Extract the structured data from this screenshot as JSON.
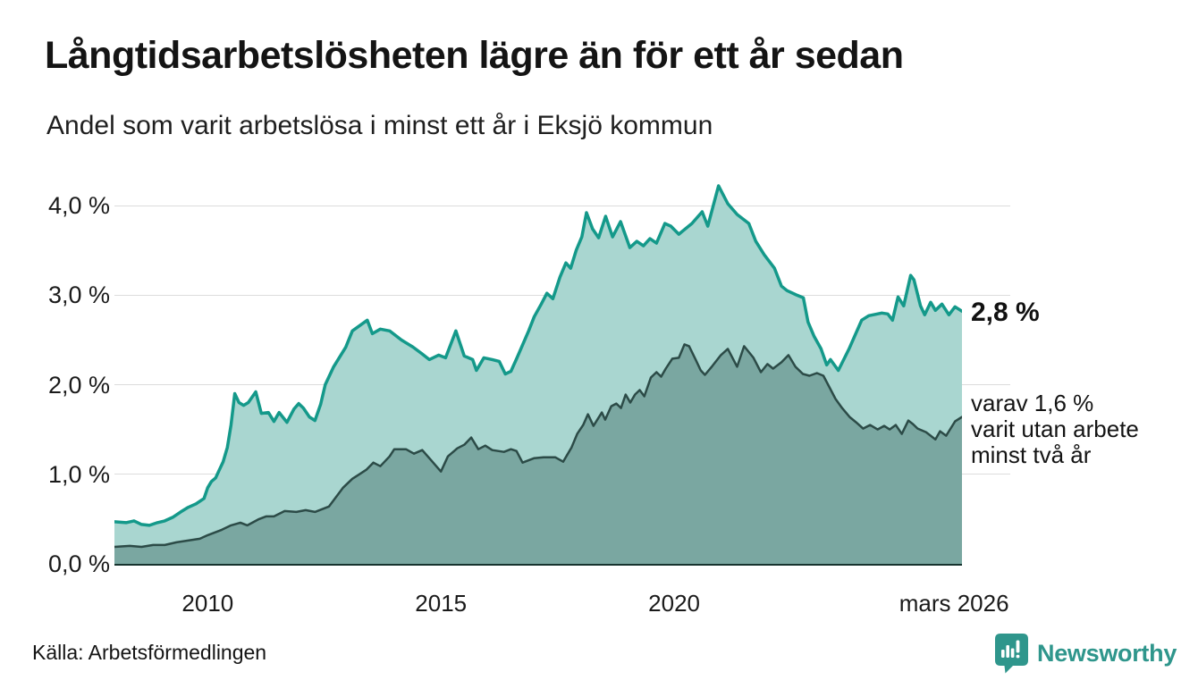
{
  "header": {
    "title": "Långtidsarbetslösheten lägre än för ett år sedan",
    "subtitle": "Andel som varit arbetslösa i minst ett år i Eksjö kommun"
  },
  "annotations": {
    "latest_total": "2,8 %",
    "secondary": [
      "varav 1,6 %",
      "varit utan arbete",
      "minst två år"
    ]
  },
  "footer": {
    "source": "Källa: Arbetsförmedlingen",
    "brand": "Newsworthy"
  },
  "colors": {
    "series1_line": "#14998a",
    "series1_fill": "#a9d6d0",
    "series2_line": "#2c4b47",
    "series2_fill": "#7aa7a1",
    "grid": "#dcdcdc",
    "axis": "#16332e",
    "brand_teal": "#2f968c",
    "text": "#141414"
  },
  "chart_data": {
    "type": "area",
    "title": "Långtidsarbetslösheten lägre än för ett år sedan",
    "subtitle": "Andel som varit arbetslösa i minst ett år i Eksjö kommun",
    "source": "Källa: Arbetsförmedlingen",
    "x_range": [
      2008.0,
      2026.17
    ],
    "ylim": [
      0,
      4.3
    ],
    "grid": true,
    "legend": "none (direct labels at right edge)",
    "yticks": [
      {
        "v": 0,
        "label": "0,0 %"
      },
      {
        "v": 1,
        "label": "1,0 %"
      },
      {
        "v": 2,
        "label": "2,0 %"
      },
      {
        "v": 3,
        "label": "3,0 %"
      },
      {
        "v": 4,
        "label": "4,0 %"
      }
    ],
    "xticks": [
      {
        "v": 2010,
        "label": "2010"
      },
      {
        "v": 2015,
        "label": "2015"
      },
      {
        "v": 2020,
        "label": "2020"
      },
      {
        "v": 2026.0,
        "label": "mars 2026"
      }
    ],
    "series": [
      {
        "name": "Andel arbetslösa minst ett år",
        "end_label": "2,8 %",
        "line_color": "#14998a",
        "fill_color": "#a9d6d0",
        "line_width": 3.5,
        "points": [
          [
            2008.0,
            0.47
          ],
          [
            2008.25,
            0.46
          ],
          [
            2008.42,
            0.48
          ],
          [
            2008.58,
            0.44
          ],
          [
            2008.75,
            0.43
          ],
          [
            2008.92,
            0.46
          ],
          [
            2009.08,
            0.48
          ],
          [
            2009.25,
            0.52
          ],
          [
            2009.42,
            0.58
          ],
          [
            2009.58,
            0.63
          ],
          [
            2009.75,
            0.67
          ],
          [
            2009.92,
            0.73
          ],
          [
            2010.0,
            0.85
          ],
          [
            2010.08,
            0.92
          ],
          [
            2010.17,
            0.96
          ],
          [
            2010.25,
            1.05
          ],
          [
            2010.33,
            1.14
          ],
          [
            2010.42,
            1.3
          ],
          [
            2010.5,
            1.55
          ],
          [
            2010.58,
            1.9
          ],
          [
            2010.67,
            1.8
          ],
          [
            2010.77,
            1.77
          ],
          [
            2010.87,
            1.8
          ],
          [
            2011.03,
            1.92
          ],
          [
            2011.15,
            1.68
          ],
          [
            2011.3,
            1.69
          ],
          [
            2011.42,
            1.59
          ],
          [
            2011.53,
            1.69
          ],
          [
            2011.7,
            1.58
          ],
          [
            2011.85,
            1.73
          ],
          [
            2011.95,
            1.79
          ],
          [
            2012.05,
            1.74
          ],
          [
            2012.18,
            1.64
          ],
          [
            2012.3,
            1.6
          ],
          [
            2012.42,
            1.78
          ],
          [
            2012.52,
            2.0
          ],
          [
            2012.7,
            2.2
          ],
          [
            2012.96,
            2.42
          ],
          [
            2013.1,
            2.6
          ],
          [
            2013.42,
            2.72
          ],
          [
            2013.53,
            2.57
          ],
          [
            2013.7,
            2.62
          ],
          [
            2013.9,
            2.6
          ],
          [
            2014.15,
            2.5
          ],
          [
            2014.4,
            2.42
          ],
          [
            2014.58,
            2.35
          ],
          [
            2014.75,
            2.28
          ],
          [
            2014.95,
            2.33
          ],
          [
            2015.1,
            2.3
          ],
          [
            2015.32,
            2.6
          ],
          [
            2015.5,
            2.32
          ],
          [
            2015.68,
            2.28
          ],
          [
            2015.76,
            2.16
          ],
          [
            2015.92,
            2.3
          ],
          [
            2016.1,
            2.28
          ],
          [
            2016.25,
            2.26
          ],
          [
            2016.38,
            2.12
          ],
          [
            2016.5,
            2.15
          ],
          [
            2016.63,
            2.3
          ],
          [
            2016.88,
            2.6
          ],
          [
            2017.0,
            2.76
          ],
          [
            2017.15,
            2.9
          ],
          [
            2017.27,
            3.02
          ],
          [
            2017.4,
            2.96
          ],
          [
            2017.55,
            3.2
          ],
          [
            2017.68,
            3.36
          ],
          [
            2017.78,
            3.3
          ],
          [
            2017.9,
            3.5
          ],
          [
            2018.02,
            3.65
          ],
          [
            2018.12,
            3.92
          ],
          [
            2018.25,
            3.74
          ],
          [
            2018.38,
            3.64
          ],
          [
            2018.53,
            3.88
          ],
          [
            2018.68,
            3.65
          ],
          [
            2018.85,
            3.82
          ],
          [
            2019.05,
            3.53
          ],
          [
            2019.2,
            3.6
          ],
          [
            2019.34,
            3.55
          ],
          [
            2019.48,
            3.63
          ],
          [
            2019.62,
            3.58
          ],
          [
            2019.8,
            3.8
          ],
          [
            2019.93,
            3.77
          ],
          [
            2020.1,
            3.68
          ],
          [
            2020.38,
            3.8
          ],
          [
            2020.6,
            3.93
          ],
          [
            2020.72,
            3.77
          ],
          [
            2020.95,
            4.22
          ],
          [
            2021.15,
            4.02
          ],
          [
            2021.35,
            3.9
          ],
          [
            2021.6,
            3.8
          ],
          [
            2021.75,
            3.6
          ],
          [
            2021.93,
            3.45
          ],
          [
            2022.15,
            3.3
          ],
          [
            2022.3,
            3.1
          ],
          [
            2022.42,
            3.05
          ],
          [
            2022.63,
            3.0
          ],
          [
            2022.77,
            2.97
          ],
          [
            2022.87,
            2.7
          ],
          [
            2023.0,
            2.54
          ],
          [
            2023.15,
            2.4
          ],
          [
            2023.27,
            2.22
          ],
          [
            2023.35,
            2.28
          ],
          [
            2023.52,
            2.16
          ],
          [
            2023.75,
            2.4
          ],
          [
            2024.02,
            2.72
          ],
          [
            2024.17,
            2.77
          ],
          [
            2024.45,
            2.8
          ],
          [
            2024.58,
            2.79
          ],
          [
            2024.68,
            2.72
          ],
          [
            2024.8,
            2.98
          ],
          [
            2024.92,
            2.88
          ],
          [
            2025.07,
            3.22
          ],
          [
            2025.14,
            3.17
          ],
          [
            2025.28,
            2.88
          ],
          [
            2025.37,
            2.78
          ],
          [
            2025.5,
            2.92
          ],
          [
            2025.6,
            2.83
          ],
          [
            2025.74,
            2.9
          ],
          [
            2025.89,
            2.78
          ],
          [
            2026.02,
            2.87
          ],
          [
            2026.17,
            2.82
          ]
        ]
      },
      {
        "name": "varav utan arbete minst två år",
        "end_label": "1,6 %",
        "line_color": "#2c4b47",
        "fill_color": "#7aa7a1",
        "line_width": 2.5,
        "points": [
          [
            2008.0,
            0.19
          ],
          [
            2008.33,
            0.2
          ],
          [
            2008.58,
            0.19
          ],
          [
            2008.83,
            0.21
          ],
          [
            2009.08,
            0.21
          ],
          [
            2009.33,
            0.24
          ],
          [
            2009.58,
            0.26
          ],
          [
            2009.83,
            0.28
          ],
          [
            2010.0,
            0.32
          ],
          [
            2010.3,
            0.38
          ],
          [
            2010.5,
            0.43
          ],
          [
            2010.7,
            0.46
          ],
          [
            2010.85,
            0.43
          ],
          [
            2011.1,
            0.5
          ],
          [
            2011.25,
            0.53
          ],
          [
            2011.42,
            0.53
          ],
          [
            2011.65,
            0.59
          ],
          [
            2011.9,
            0.58
          ],
          [
            2012.1,
            0.6
          ],
          [
            2012.3,
            0.58
          ],
          [
            2012.6,
            0.64
          ],
          [
            2012.9,
            0.85
          ],
          [
            2013.1,
            0.95
          ],
          [
            2013.25,
            1.0
          ],
          [
            2013.4,
            1.05
          ],
          [
            2013.55,
            1.13
          ],
          [
            2013.7,
            1.09
          ],
          [
            2013.9,
            1.2
          ],
          [
            2014.0,
            1.28
          ],
          [
            2014.25,
            1.28
          ],
          [
            2014.42,
            1.23
          ],
          [
            2014.6,
            1.27
          ],
          [
            2014.8,
            1.15
          ],
          [
            2015.0,
            1.03
          ],
          [
            2015.15,
            1.2
          ],
          [
            2015.35,
            1.29
          ],
          [
            2015.5,
            1.33
          ],
          [
            2015.65,
            1.41
          ],
          [
            2015.8,
            1.28
          ],
          [
            2015.95,
            1.32
          ],
          [
            2016.1,
            1.27
          ],
          [
            2016.35,
            1.25
          ],
          [
            2016.5,
            1.28
          ],
          [
            2016.62,
            1.26
          ],
          [
            2016.75,
            1.13
          ],
          [
            2017.0,
            1.18
          ],
          [
            2017.2,
            1.19
          ],
          [
            2017.45,
            1.19
          ],
          [
            2017.62,
            1.14
          ],
          [
            2017.8,
            1.3
          ],
          [
            2017.92,
            1.45
          ],
          [
            2018.05,
            1.55
          ],
          [
            2018.15,
            1.67
          ],
          [
            2018.27,
            1.54
          ],
          [
            2018.45,
            1.69
          ],
          [
            2018.52,
            1.61
          ],
          [
            2018.65,
            1.76
          ],
          [
            2018.76,
            1.79
          ],
          [
            2018.86,
            1.74
          ],
          [
            2018.96,
            1.89
          ],
          [
            2019.06,
            1.8
          ],
          [
            2019.16,
            1.89
          ],
          [
            2019.26,
            1.94
          ],
          [
            2019.36,
            1.87
          ],
          [
            2019.5,
            2.08
          ],
          [
            2019.62,
            2.14
          ],
          [
            2019.72,
            2.09
          ],
          [
            2019.82,
            2.18
          ],
          [
            2019.96,
            2.29
          ],
          [
            2020.1,
            2.3
          ],
          [
            2020.22,
            2.45
          ],
          [
            2020.32,
            2.43
          ],
          [
            2020.46,
            2.28
          ],
          [
            2020.57,
            2.16
          ],
          [
            2020.66,
            2.11
          ],
          [
            2020.82,
            2.21
          ],
          [
            2021.0,
            2.33
          ],
          [
            2021.15,
            2.4
          ],
          [
            2021.35,
            2.2
          ],
          [
            2021.5,
            2.43
          ],
          [
            2021.7,
            2.3
          ],
          [
            2021.86,
            2.14
          ],
          [
            2022.0,
            2.23
          ],
          [
            2022.12,
            2.18
          ],
          [
            2022.3,
            2.25
          ],
          [
            2022.45,
            2.33
          ],
          [
            2022.6,
            2.2
          ],
          [
            2022.76,
            2.12
          ],
          [
            2022.9,
            2.1
          ],
          [
            2023.06,
            2.13
          ],
          [
            2023.2,
            2.1
          ],
          [
            2023.32,
            1.98
          ],
          [
            2023.46,
            1.84
          ],
          [
            2023.6,
            1.74
          ],
          [
            2023.76,
            1.64
          ],
          [
            2023.9,
            1.58
          ],
          [
            2024.05,
            1.51
          ],
          [
            2024.2,
            1.55
          ],
          [
            2024.36,
            1.5
          ],
          [
            2024.5,
            1.54
          ],
          [
            2024.62,
            1.5
          ],
          [
            2024.75,
            1.55
          ],
          [
            2024.88,
            1.45
          ],
          [
            2025.02,
            1.6
          ],
          [
            2025.12,
            1.56
          ],
          [
            2025.22,
            1.51
          ],
          [
            2025.4,
            1.47
          ],
          [
            2025.6,
            1.39
          ],
          [
            2025.7,
            1.48
          ],
          [
            2025.83,
            1.43
          ],
          [
            2026.02,
            1.59
          ],
          [
            2026.17,
            1.64
          ]
        ]
      }
    ]
  }
}
